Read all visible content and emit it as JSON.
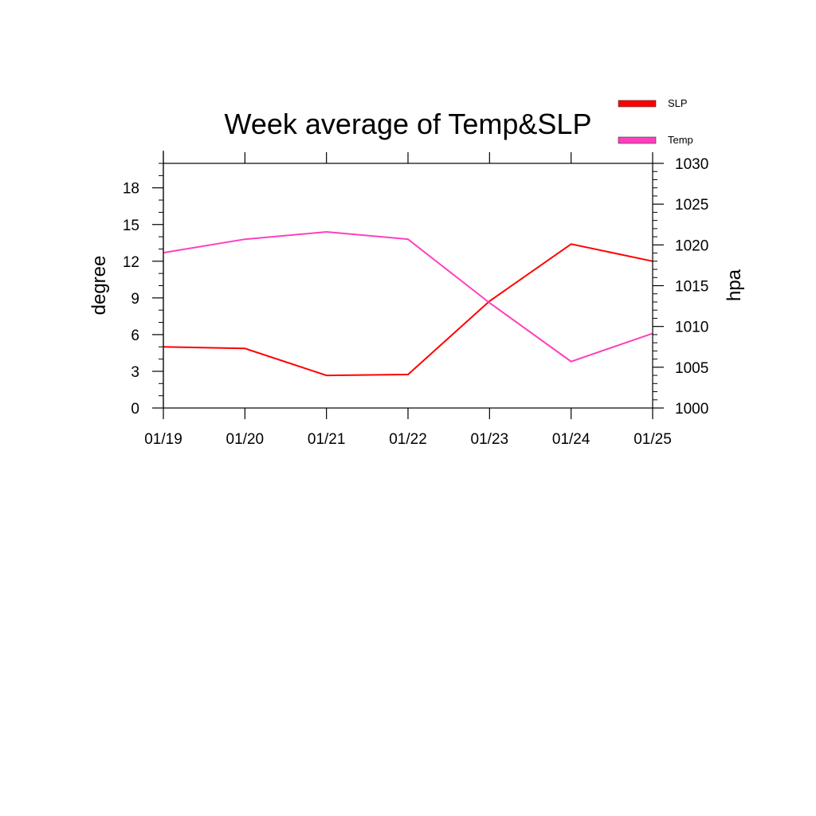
{
  "chart_data": {
    "type": "line",
    "title": "Week average of Temp&SLP",
    "categories": [
      "01/19",
      "01/20",
      "01/21",
      "01/22",
      "01/23",
      "01/24",
      "01/25"
    ],
    "left_axis": {
      "label": "degree",
      "ylim": [
        0,
        20
      ],
      "ticks": [
        0,
        3,
        6,
        9,
        12,
        15,
        18
      ]
    },
    "right_axis": {
      "label": "hpa",
      "ylim": [
        1000,
        1030
      ],
      "ticks": [
        1000,
        1005,
        1010,
        1015,
        1020,
        1025,
        1030
      ]
    },
    "series": [
      {
        "name": "SLP",
        "axis": "right",
        "color": "#ff0000",
        "values": [
          1007.5,
          1007.3,
          1004.0,
          1004.1,
          1013.1,
          1020.1,
          1018.0
        ]
      },
      {
        "name": "Temp",
        "axis": "left",
        "color": "#ff3fbf",
        "values": [
          12.7,
          13.8,
          14.4,
          13.8,
          8.6,
          3.8,
          6.1
        ]
      }
    ],
    "legend_position": "top-right",
    "grid": false
  }
}
